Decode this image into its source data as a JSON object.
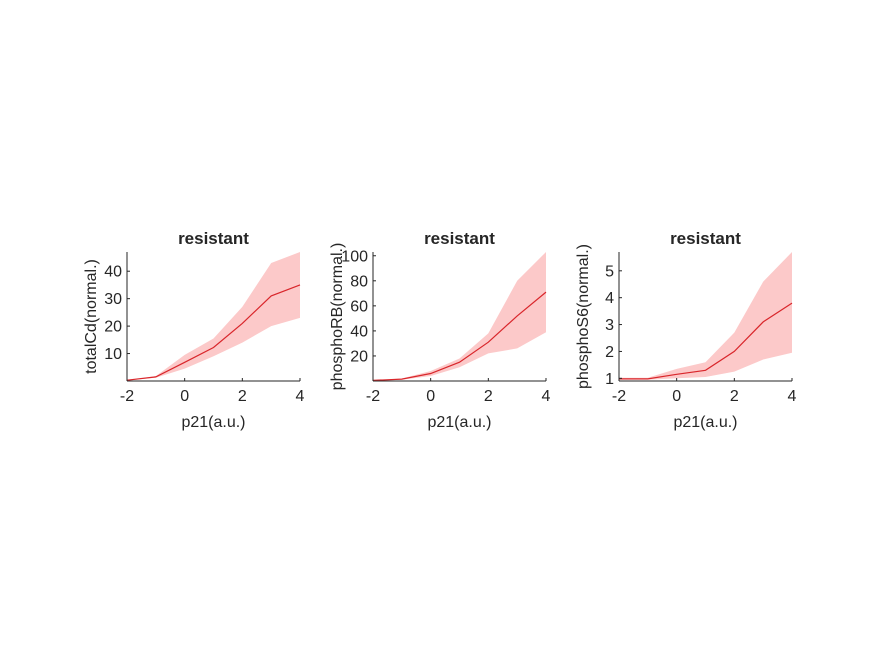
{
  "colors": {
    "line": "#d9262b",
    "band": "#fcc9c9",
    "axis": "#262626"
  },
  "chart_data": [
    {
      "type": "area",
      "title": "resistant",
      "xlabel": "p21(a.u.)",
      "ylabel": "totalCd(normal.)",
      "xlim": [
        -2,
        4
      ],
      "ylim": [
        0,
        47
      ],
      "xticks": [
        -2,
        0,
        2,
        4
      ],
      "yticks": [
        10,
        20,
        30,
        40
      ],
      "x": [
        -2,
        -1,
        0,
        1,
        2,
        3,
        4
      ],
      "mean": [
        0.3,
        1.5,
        6.8,
        12.2,
        21,
        31,
        35
      ],
      "lower": [
        0.3,
        1.2,
        4.5,
        9,
        14,
        20,
        23
      ],
      "upper": [
        0.3,
        1.8,
        9.5,
        15.5,
        27,
        43,
        47
      ]
    },
    {
      "type": "area",
      "title": "resistant",
      "xlabel": "p21(a.u.)",
      "ylabel": "phosphoRB(normal.)",
      "xlim": [
        -2,
        4
      ],
      "ylim": [
        0,
        103
      ],
      "xticks": [
        -2,
        0,
        2,
        4
      ],
      "yticks": [
        20,
        40,
        60,
        80,
        100
      ],
      "x": [
        -2,
        -1,
        0,
        1,
        2,
        3,
        4
      ],
      "mean": [
        0.5,
        1.5,
        6,
        15,
        31,
        52,
        71
      ],
      "lower": [
        0.5,
        1,
        4,
        11,
        22,
        26,
        39
      ],
      "upper": [
        0.5,
        2,
        8,
        18,
        38,
        80,
        103
      ]
    },
    {
      "type": "area",
      "title": "resistant",
      "xlabel": "p21(a.u.)",
      "ylabel": "phosphoS6(normal.)",
      "xlim": [
        -2,
        4
      ],
      "ylim": [
        0.9,
        5.7
      ],
      "xticks": [
        -2,
        0,
        2,
        4
      ],
      "yticks": [
        1,
        2,
        3,
        4,
        5
      ],
      "x": [
        -2,
        -1,
        0,
        1,
        2,
        3,
        4
      ],
      "mean": [
        0.98,
        0.98,
        1.15,
        1.3,
        2,
        3.1,
        3.8
      ],
      "lower": [
        0.95,
        0.95,
        1,
        1.05,
        1.25,
        1.7,
        1.95
      ],
      "upper": [
        1.02,
        1.02,
        1.35,
        1.6,
        2.7,
        4.6,
        5.7
      ]
    }
  ]
}
